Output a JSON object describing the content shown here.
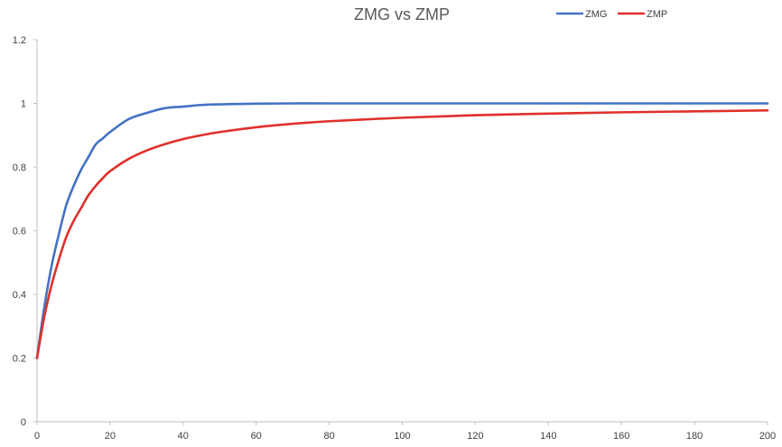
{
  "chart_data": {
    "type": "line",
    "title": "ZMG vs ZMP",
    "xlabel": "",
    "ylabel": "",
    "xlim": [
      0,
      200
    ],
    "ylim": [
      0,
      1.2
    ],
    "x_ticks": [
      "0",
      "20",
      "40",
      "60",
      "80",
      "100",
      "120",
      "140",
      "160",
      "180",
      "200"
    ],
    "y_ticks": [
      "0",
      "0.2",
      "0.4",
      "0.6",
      "0.8",
      "1",
      "1.2"
    ],
    "grid": false,
    "legend_position": "top-right",
    "series": [
      {
        "name": "ZMG",
        "color": "#4472c4",
        "x": [
          0,
          2,
          4,
          6,
          8,
          10,
          12,
          14,
          16,
          18,
          20,
          25,
          30,
          35,
          40,
          45,
          50,
          60,
          70,
          80,
          100,
          120,
          140,
          160,
          180,
          200
        ],
        "y": [
          0.2,
          0.36,
          0.49,
          0.59,
          0.68,
          0.74,
          0.79,
          0.83,
          0.87,
          0.89,
          0.91,
          0.95,
          0.97,
          0.985,
          0.99,
          0.995,
          0.997,
          0.999,
          1.0,
          1.0,
          1.0,
          1.0,
          1.0,
          1.0,
          1.0,
          1.0
        ]
      },
      {
        "name": "ZMP",
        "color": "#e0302b",
        "x": [
          0,
          2,
          4,
          6,
          8,
          10,
          12,
          14,
          16,
          18,
          20,
          25,
          30,
          35,
          40,
          45,
          50,
          60,
          70,
          80,
          100,
          120,
          140,
          160,
          180,
          200
        ],
        "y": [
          0.2,
          0.33,
          0.43,
          0.51,
          0.58,
          0.63,
          0.67,
          0.71,
          0.74,
          0.765,
          0.787,
          0.825,
          0.852,
          0.872,
          0.888,
          0.9,
          0.91,
          0.925,
          0.936,
          0.944,
          0.955,
          0.963,
          0.968,
          0.972,
          0.975,
          0.978
        ]
      }
    ]
  }
}
